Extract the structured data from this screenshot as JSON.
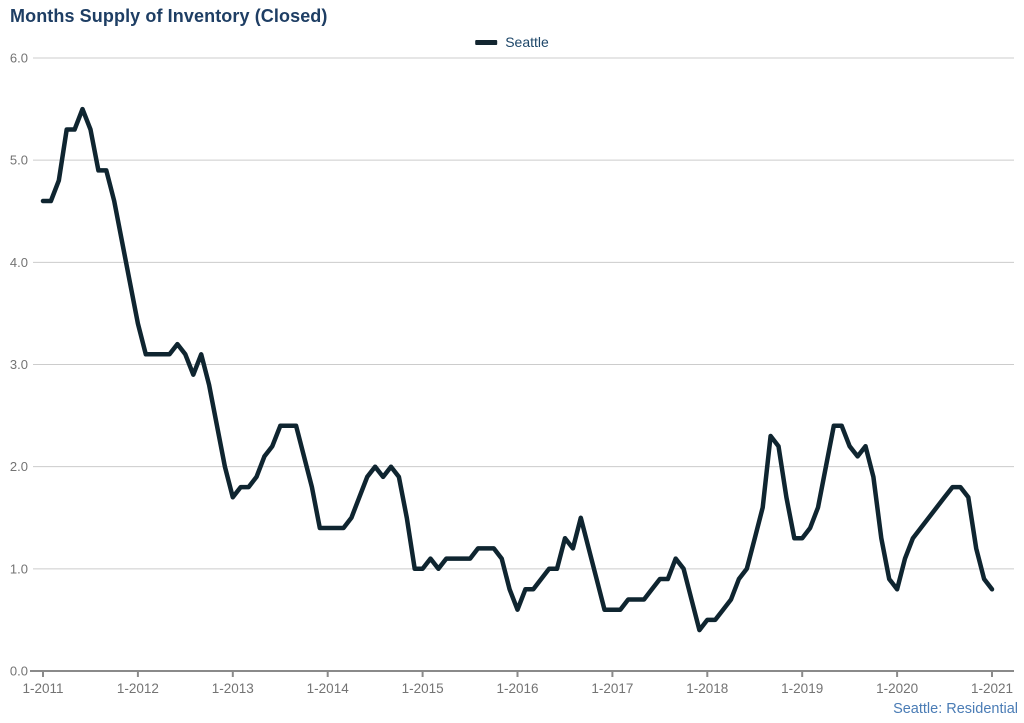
{
  "title": "Months Supply of Inventory (Closed)",
  "legend": {
    "series_label": "Seattle",
    "swatch_color": "#132630"
  },
  "footer_note": "Seattle: Residential",
  "colors": {
    "title": "#1e3e64",
    "legend_label": "#1d4668",
    "line": "#0f2530",
    "grid": "#cccccc",
    "axis": "#8a8a8a",
    "tick_label": "#737373",
    "footer": "#4a7cb5",
    "background": "#ffffff"
  },
  "chart_data": {
    "type": "line",
    "title": "Months Supply of Inventory (Closed)",
    "x_unit": "month",
    "x_start_label": "1-2011",
    "x_end_label": "1-2021",
    "x_tick_interval_months": 12,
    "x_tick_labels": [
      "1-2011",
      "1-2012",
      "1-2013",
      "1-2014",
      "1-2015",
      "1-2016",
      "1-2017",
      "1-2018",
      "1-2019",
      "1-2020",
      "1-2021"
    ],
    "y_tick_labels": [
      "0.0",
      "1.0",
      "2.0",
      "3.0",
      "4.0",
      "5.0",
      "6.0"
    ],
    "ylim": [
      0,
      6
    ],
    "grid": "horizontal",
    "legend_position": "top-center",
    "series": [
      {
        "name": "Seattle",
        "color": "#0f2530",
        "values": [
          4.6,
          4.6,
          4.8,
          5.3,
          5.3,
          5.5,
          5.3,
          4.9,
          4.9,
          4.6,
          4.2,
          3.8,
          3.4,
          3.1,
          3.1,
          3.1,
          3.1,
          3.2,
          3.1,
          2.9,
          3.1,
          2.8,
          2.4,
          2.0,
          1.7,
          1.8,
          1.8,
          1.9,
          2.1,
          2.2,
          2.4,
          2.4,
          2.4,
          2.1,
          1.8,
          1.4,
          1.4,
          1.4,
          1.4,
          1.5,
          1.7,
          1.9,
          2.0,
          1.9,
          2.0,
          1.9,
          1.5,
          1.0,
          1.0,
          1.1,
          1.0,
          1.1,
          1.1,
          1.1,
          1.1,
          1.2,
          1.2,
          1.2,
          1.1,
          0.8,
          0.6,
          0.8,
          0.8,
          0.9,
          1.0,
          1.0,
          1.3,
          1.2,
          1.5,
          1.2,
          0.9,
          0.6,
          0.6,
          0.6,
          0.7,
          0.7,
          0.7,
          0.8,
          0.9,
          0.9,
          1.1,
          1.0,
          0.7,
          0.4,
          0.5,
          0.5,
          0.6,
          0.7,
          0.9,
          1.0,
          1.3,
          1.6,
          2.3,
          2.2,
          1.7,
          1.3,
          1.3,
          1.4,
          1.6,
          2.0,
          2.4,
          2.4,
          2.2,
          2.1,
          2.2,
          1.9,
          1.3,
          0.9,
          0.8,
          1.1,
          1.3,
          1.4,
          1.5,
          1.6,
          1.7,
          1.8,
          1.8,
          1.7,
          1.2,
          0.9,
          0.8
        ]
      }
    ]
  }
}
